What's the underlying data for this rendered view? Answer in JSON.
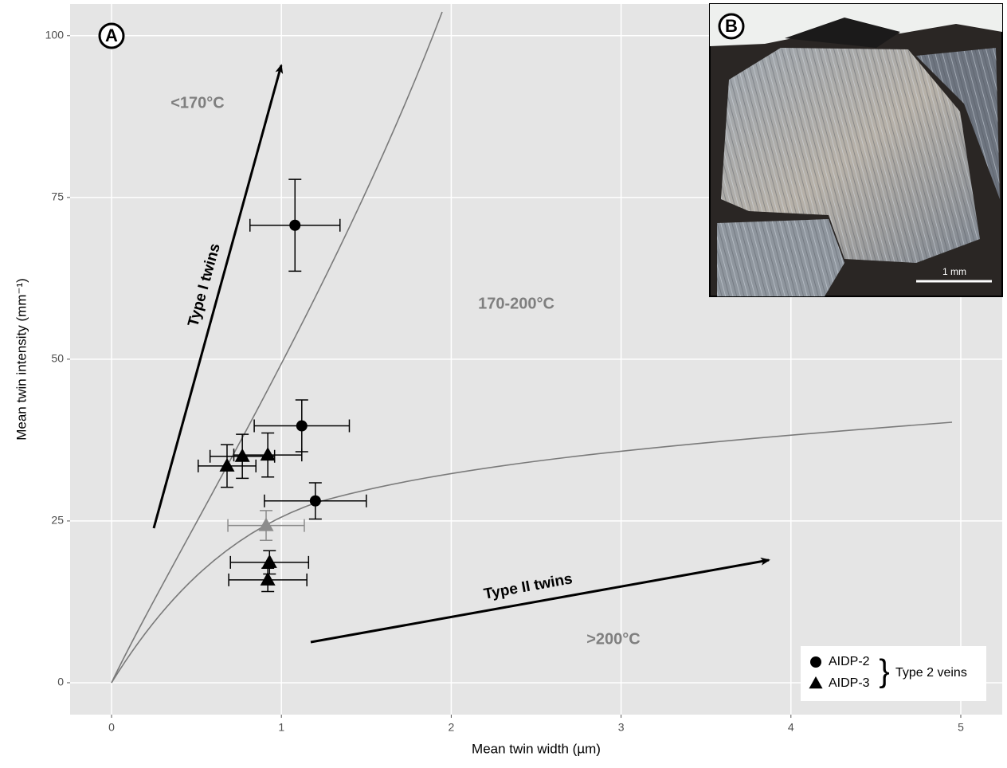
{
  "chart_data": {
    "type": "scatter",
    "x_label": "Mean twin width (µm)",
    "y_label": "Mean twin intensity (mm⁻¹)",
    "xlim": [
      -0.244,
      5.244
    ],
    "ylim": [
      -4.93,
      104.9
    ],
    "xticks": [
      0,
      1,
      2,
      3,
      4,
      5
    ],
    "yticks": [
      0,
      25,
      50,
      75,
      100
    ],
    "grid": true,
    "series": [
      {
        "name": "AIDP-2",
        "marker": "circle",
        "color": "#000000",
        "x": [
          1.08,
          1.12,
          1.2
        ],
        "values": [
          70.7,
          39.7,
          28.1
        ],
        "x_err": [
          0.265,
          0.28,
          0.3
        ],
        "y_err": [
          7.1,
          4.0,
          2.8
        ]
      },
      {
        "name": "AIDP-3",
        "marker": "triangle",
        "color": "#000000",
        "colors": [
          "#000000",
          "#000000",
          "#000000",
          "#8c8c8c",
          "#000000",
          "#000000"
        ],
        "x": [
          0.68,
          0.77,
          0.92,
          0.91,
          0.93,
          0.92
        ],
        "values": [
          33.5,
          35.0,
          35.2,
          24.3,
          18.6,
          15.9
        ],
        "x_err": [
          0.17,
          0.19,
          0.2,
          0.225,
          0.23,
          0.23
        ],
        "y_err": [
          3.3,
          3.4,
          3.4,
          2.3,
          1.8,
          1.8
        ]
      }
    ],
    "legend_group": "Type 2 veins",
    "annotations": {
      "panel_a": "A",
      "panel_b": "B",
      "low_temp": "<170°C",
      "mid_temp": "170-200°C",
      "high_temp": ">200°C",
      "type1": "Type I twins",
      "type2": "Type II twins",
      "scale_bar": "1 mm"
    }
  }
}
